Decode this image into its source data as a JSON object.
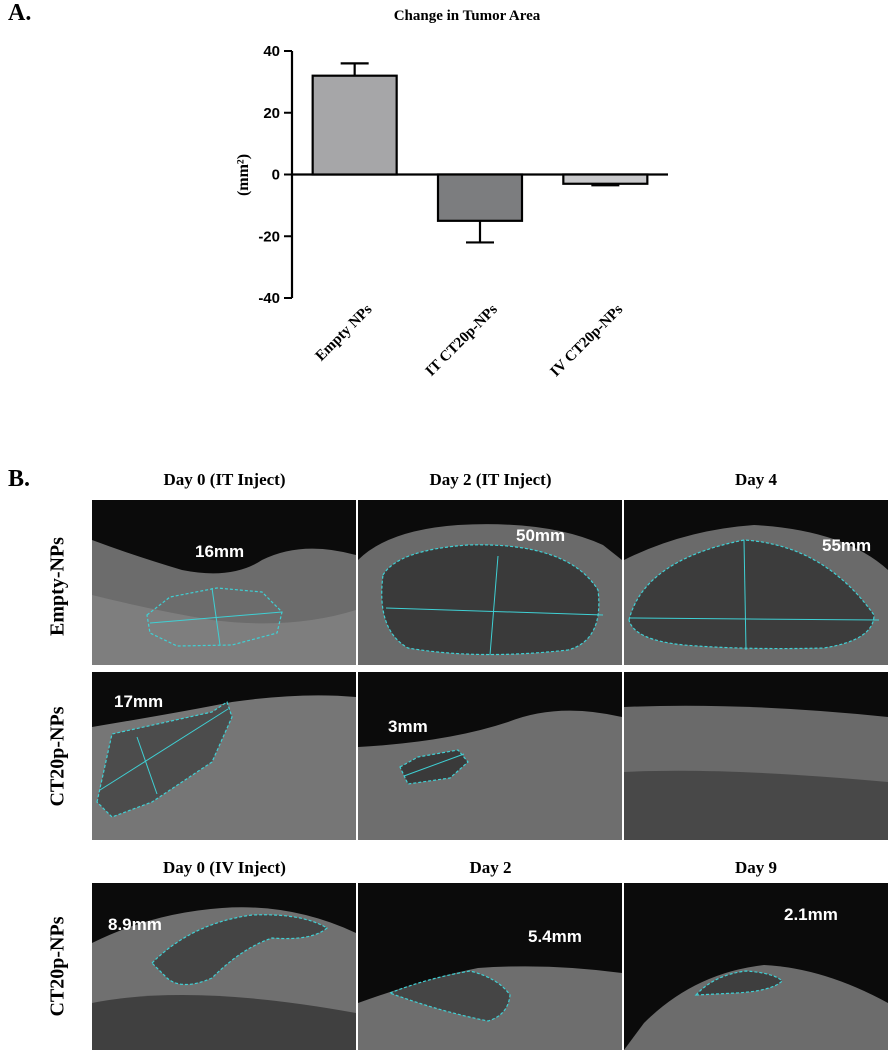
{
  "panel_a_label": "A.",
  "panel_b_label": "B.",
  "chart_data": {
    "type": "bar",
    "title": "Change in Tumor Area",
    "ylabel": "(mm²)",
    "xlabel": "",
    "categories": [
      "Empty NPs",
      "IT CT20p-NPs",
      "IV CT20p-NPs"
    ],
    "values": [
      32,
      -15,
      -3
    ],
    "errors": [
      4,
      7,
      0.5
    ],
    "colors": [
      "#a6a6a8",
      "#7c7d7f",
      "#c9c9cb"
    ],
    "ylim": [
      -40,
      40
    ],
    "yticks": [
      40,
      20,
      0,
      -20,
      -40
    ],
    "grid": false
  },
  "figure_b": {
    "column_headers": {
      "top": [
        "Day 0 (IT Inject)",
        "Day 2 (IT Inject)",
        "Day 4"
      ],
      "bottom": [
        "Day 0 (IV Inject)",
        "Day 2",
        "Day 9"
      ]
    },
    "row_labels": [
      "Empty-NPs",
      "CT20p-NPs",
      "CT20p-NPs"
    ],
    "measurements": {
      "r0c0": "16mm",
      "r0c1": "50mm",
      "r0c2": "55mm",
      "r1c0": "17mm",
      "r1c1": "3mm",
      "r2c0": "8.9mm",
      "r2c1": "5.4mm",
      "r2c2": "2.1mm"
    },
    "outline_color": "#3fd0d4"
  }
}
